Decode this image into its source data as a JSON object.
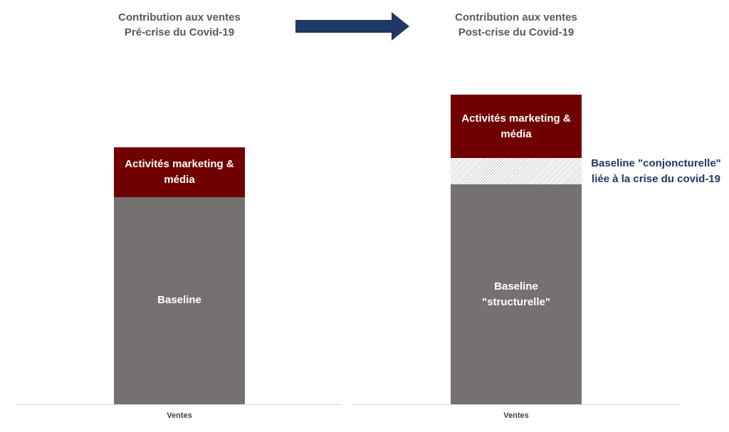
{
  "chart_data": [
    {
      "type": "bar",
      "stacked": true,
      "title": "Contribution aux ventes",
      "subtitle": "Pré-crise du Covid-19",
      "categories": [
        "Ventes"
      ],
      "ylim": [
        0,
        100
      ],
      "series": [
        {
          "name": "Baseline",
          "color": "#767171",
          "values": [
            67
          ]
        },
        {
          "name": "Activités marketing & média",
          "color": "#700000",
          "values": [
            16
          ]
        }
      ]
    },
    {
      "type": "bar",
      "stacked": true,
      "title": "Contribution aux ventes",
      "subtitle": "Post-crise du Covid-19",
      "categories": [
        "Ventes"
      ],
      "ylim": [
        0,
        100
      ],
      "series": [
        {
          "name": "Baseline \"structurelle\"",
          "color": "#767171",
          "values": [
            71
          ]
        },
        {
          "name": "Baseline \"conjoncturelle\" liée à la crise du covid-19",
          "color": "#1f3864",
          "pattern": "hatch",
          "values": [
            8.5
          ]
        },
        {
          "name": "Activités marketing & média",
          "color": "#700000",
          "values": [
            20.5
          ]
        }
      ]
    }
  ]
}
